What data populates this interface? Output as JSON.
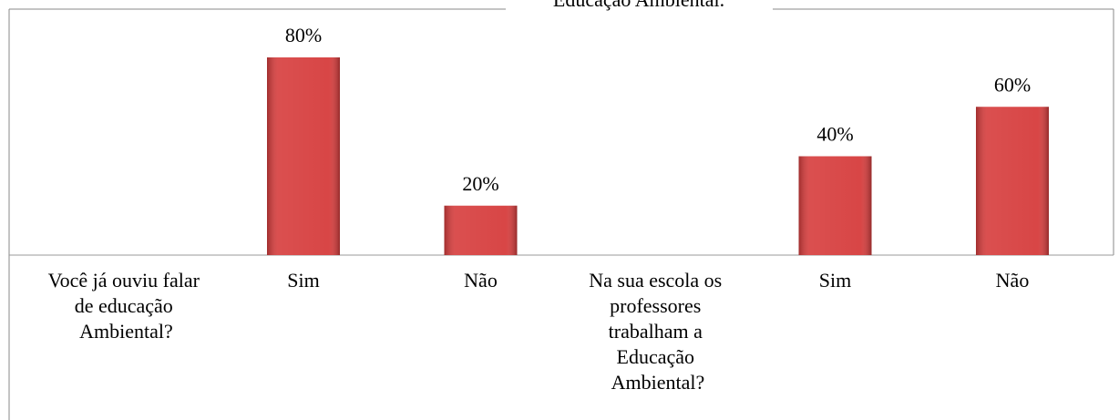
{
  "chart_data": {
    "type": "bar",
    "title": "Educação Ambiental.",
    "categories": [
      "Você já ouviu falar de educação Ambiental?",
      "Sim",
      "Não",
      "Na sua escola os professores trabalham a Educação Ambiental?",
      "Sim",
      "Não"
    ],
    "values": [
      null,
      80,
      20,
      null,
      40,
      60
    ],
    "value_labels": [
      null,
      "80%",
      "20%",
      null,
      "40%",
      "60%"
    ],
    "color": "#d63c3c"
  }
}
